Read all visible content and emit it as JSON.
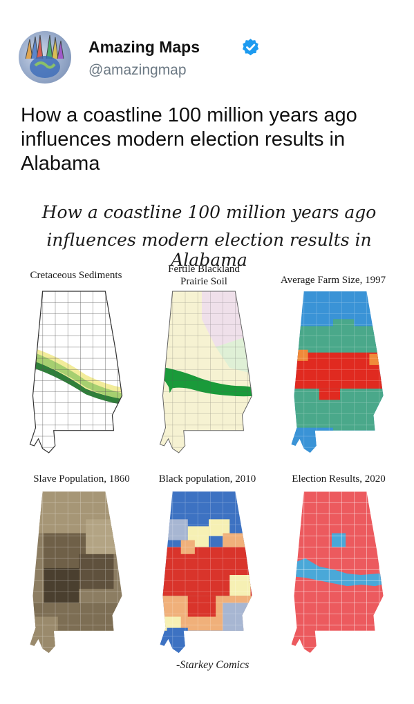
{
  "account": {
    "display_name": "Amazing Maps",
    "handle": "@amazingmap"
  },
  "tweet": {
    "text": "How a coastline 100 million years ago influences modern election results in Alabama"
  },
  "infographic": {
    "title_line1": "How a coastline 100 million years ago",
    "title_line2": "influences modern election results in Alabama",
    "maps": [
      {
        "label": "Cretaceous Sediments"
      },
      {
        "label_line1": "Fertile Blackland",
        "label_line2": "Prairie Soil"
      },
      {
        "label": "Average Farm Size, 1997"
      },
      {
        "label": "Slave Population, 1860"
      },
      {
        "label": "Black population, 2010"
      },
      {
        "label": "Election Results, 2020"
      }
    ],
    "credit": "-Starkey Comics"
  },
  "colors": {
    "verified_blue": "#1d9bf0",
    "republican_red": "#ec5a5e",
    "democrat_blue": "#4aa8d8",
    "farm_blue": "#3a93d6",
    "farm_green": "#4aa88a",
    "farm_red": "#e02a20",
    "farm_orange": "#f08a3a",
    "prairie_green": "#1a9a3a",
    "black_pop_red": "#d9342b",
    "black_pop_blue": "#3d72c2"
  }
}
